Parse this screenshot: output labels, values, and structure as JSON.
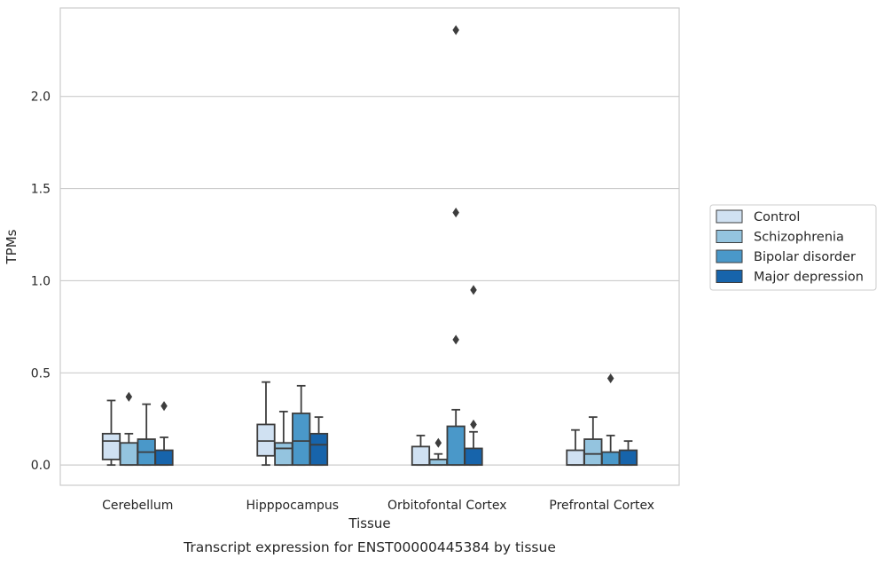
{
  "caption": "Transcript expression for ENST00000445384 by tissue",
  "chart_data": {
    "type": "boxplot",
    "title": "",
    "xlabel": "Tissue",
    "ylabel": "TPMs",
    "ylim": [
      -0.11,
      2.48
    ],
    "yticks": [
      0.0,
      0.5,
      1.0,
      1.5,
      2.0
    ],
    "ytick_labels": [
      "0.0",
      "0.5",
      "1.0",
      "1.5",
      "2.0"
    ],
    "grid": "horizontal",
    "legend_position": "right",
    "categories": [
      "Cerebellum",
      "Hipppocampus",
      "Orbitofontal Cortex",
      "Prefrontal Cortex"
    ],
    "series": [
      {
        "name": "Control",
        "color": "#d0e1f2",
        "boxes": [
          {
            "whislo": 0.0,
            "q1": 0.03,
            "med": 0.13,
            "q3": 0.17,
            "whishi": 0.35,
            "fliers": []
          },
          {
            "whislo": 0.0,
            "q1": 0.05,
            "med": 0.13,
            "q3": 0.22,
            "whishi": 0.45,
            "fliers": []
          },
          {
            "whislo": 0.0,
            "q1": 0.0,
            "med": 0.0,
            "q3": 0.1,
            "whishi": 0.16,
            "fliers": []
          },
          {
            "whislo": 0.0,
            "q1": 0.0,
            "med": 0.0,
            "q3": 0.08,
            "whishi": 0.19,
            "fliers": []
          }
        ]
      },
      {
        "name": "Schizophrenia",
        "color": "#94c4df",
        "boxes": [
          {
            "whislo": 0.0,
            "q1": 0.0,
            "med": 0.0,
            "q3": 0.12,
            "whishi": 0.17,
            "fliers": [
              0.37
            ]
          },
          {
            "whislo": 0.0,
            "q1": 0.0,
            "med": 0.09,
            "q3": 0.12,
            "whishi": 0.29,
            "fliers": []
          },
          {
            "whislo": 0.0,
            "q1": 0.0,
            "med": 0.0,
            "q3": 0.03,
            "whishi": 0.06,
            "fliers": [
              0.12
            ]
          },
          {
            "whislo": 0.0,
            "q1": 0.0,
            "med": 0.06,
            "q3": 0.14,
            "whishi": 0.26,
            "fliers": []
          }
        ]
      },
      {
        "name": "Bipolar disorder",
        "color": "#4a98c9",
        "boxes": [
          {
            "whislo": 0.0,
            "q1": 0.0,
            "med": 0.07,
            "q3": 0.14,
            "whishi": 0.33,
            "fliers": []
          },
          {
            "whislo": 0.0,
            "q1": 0.0,
            "med": 0.13,
            "q3": 0.28,
            "whishi": 0.43,
            "fliers": []
          },
          {
            "whislo": 0.0,
            "q1": 0.0,
            "med": 0.0,
            "q3": 0.21,
            "whishi": 0.3,
            "fliers": [
              0.68,
              1.37,
              2.36
            ]
          },
          {
            "whislo": 0.0,
            "q1": 0.0,
            "med": 0.0,
            "q3": 0.07,
            "whishi": 0.16,
            "fliers": [
              0.47
            ]
          }
        ]
      },
      {
        "name": "Major depression",
        "color": "#1764ab",
        "boxes": [
          {
            "whislo": 0.0,
            "q1": 0.0,
            "med": 0.0,
            "q3": 0.08,
            "whishi": 0.15,
            "fliers": [
              0.32
            ]
          },
          {
            "whislo": 0.0,
            "q1": 0.0,
            "med": 0.11,
            "q3": 0.17,
            "whishi": 0.26,
            "fliers": []
          },
          {
            "whislo": 0.0,
            "q1": 0.0,
            "med": 0.0,
            "q3": 0.09,
            "whishi": 0.18,
            "fliers": [
              0.22,
              0.95
            ]
          },
          {
            "whislo": 0.0,
            "q1": 0.0,
            "med": 0.0,
            "q3": 0.08,
            "whishi": 0.13,
            "fliers": []
          }
        ]
      }
    ]
  }
}
